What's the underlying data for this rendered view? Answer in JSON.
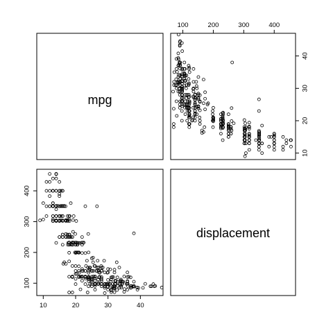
{
  "chart_data": {
    "type": "scatter",
    "variables": [
      "mpg",
      "displacement"
    ],
    "panels": {
      "mpg_label": "mpg",
      "displacement_label": "displacement"
    },
    "axes": {
      "mpg": {
        "range": [
          8,
          47
        ],
        "ticks": [
          10,
          20,
          30,
          40
        ]
      },
      "displacement": {
        "range": [
          60,
          470
        ],
        "ticks": [
          100,
          200,
          300,
          400
        ]
      }
    },
    "points": [
      [
        18,
        307
      ],
      [
        15,
        350
      ],
      [
        18,
        318
      ],
      [
        16,
        304
      ],
      [
        17,
        302
      ],
      [
        15,
        429
      ],
      [
        14,
        454
      ],
      [
        14,
        440
      ],
      [
        14,
        455
      ],
      [
        15,
        390
      ],
      [
        15,
        383
      ],
      [
        14,
        340
      ],
      [
        15,
        400
      ],
      [
        14,
        455
      ],
      [
        24,
        113
      ],
      [
        22,
        198
      ],
      [
        18,
        199
      ],
      [
        21,
        200
      ],
      [
        27,
        97
      ],
      [
        26,
        97
      ],
      [
        25,
        110
      ],
      [
        24,
        107
      ],
      [
        25,
        104
      ],
      [
        26,
        121
      ],
      [
        21,
        199
      ],
      [
        10,
        360
      ],
      [
        10,
        307
      ],
      [
        11,
        318
      ],
      [
        9,
        304
      ],
      [
        27,
        97
      ],
      [
        28,
        140
      ],
      [
        25,
        113
      ],
      [
        19,
        232
      ],
      [
        16,
        225
      ],
      [
        17,
        250
      ],
      [
        19,
        250
      ],
      [
        18,
        232
      ],
      [
        14,
        350
      ],
      [
        14,
        400
      ],
      [
        14,
        351
      ],
      [
        14,
        318
      ],
      [
        12,
        383
      ],
      [
        13,
        400
      ],
      [
        13,
        400
      ],
      [
        18,
        258
      ],
      [
        22,
        140
      ],
      [
        19,
        250
      ],
      [
        18,
        250
      ],
      [
        23,
        122
      ],
      [
        28,
        116
      ],
      [
        30,
        79
      ],
      [
        30,
        88
      ],
      [
        31,
        71
      ],
      [
        35,
        72
      ],
      [
        27,
        97
      ],
      [
        26,
        91
      ],
      [
        24,
        113
      ],
      [
        25,
        97.5
      ],
      [
        23,
        97
      ],
      [
        20,
        140
      ],
      [
        21,
        122
      ],
      [
        13,
        350
      ],
      [
        14,
        400
      ],
      [
        15,
        318
      ],
      [
        14,
        351
      ],
      [
        17,
        304
      ],
      [
        11,
        429
      ],
      [
        13,
        350
      ],
      [
        12,
        350
      ],
      [
        13,
        400
      ],
      [
        19,
        70
      ],
      [
        15,
        304
      ],
      [
        13,
        307
      ],
      [
        13,
        302
      ],
      [
        14,
        318
      ],
      [
        18,
        121
      ],
      [
        22,
        121
      ],
      [
        21,
        120
      ],
      [
        26,
        96
      ],
      [
        22,
        122
      ],
      [
        28,
        97
      ],
      [
        23,
        120
      ],
      [
        28,
        98
      ],
      [
        27,
        97
      ],
      [
        13,
        350
      ],
      [
        14,
        304
      ],
      [
        13,
        350
      ],
      [
        14,
        302
      ],
      [
        15,
        318
      ],
      [
        12,
        429
      ],
      [
        13,
        400
      ],
      [
        13,
        351
      ],
      [
        14,
        318
      ],
      [
        13,
        440
      ],
      [
        12,
        455
      ],
      [
        13,
        360
      ],
      [
        18,
        225
      ],
      [
        16,
        250
      ],
      [
        18,
        232
      ],
      [
        18,
        250
      ],
      [
        23,
        198
      ],
      [
        26,
        97
      ],
      [
        11,
        400
      ],
      [
        12,
        400
      ],
      [
        13,
        360
      ],
      [
        12,
        350
      ],
      [
        18,
        232
      ],
      [
        20,
        97
      ],
      [
        21,
        140
      ],
      [
        22,
        108
      ],
      [
        18,
        70
      ],
      [
        19,
        122
      ],
      [
        21,
        155
      ],
      [
        26,
        98
      ],
      [
        15,
        350
      ],
      [
        16,
        400
      ],
      [
        29,
        68
      ],
      [
        24,
        116
      ],
      [
        20,
        114
      ],
      [
        19,
        121
      ],
      [
        15,
        318
      ],
      [
        24,
        121
      ],
      [
        20,
        156
      ],
      [
        11,
        350
      ],
      [
        20,
        198
      ],
      [
        21,
        200
      ],
      [
        19,
        232
      ],
      [
        15,
        250
      ],
      [
        31,
        79
      ],
      [
        26,
        122
      ],
      [
        32,
        71
      ],
      [
        25,
        140
      ],
      [
        16,
        250
      ],
      [
        16,
        258
      ],
      [
        18,
        225
      ],
      [
        16,
        302
      ],
      [
        13,
        350
      ],
      [
        14,
        318
      ],
      [
        14,
        302
      ],
      [
        14,
        304
      ],
      [
        29,
        98
      ],
      [
        26,
        79
      ],
      [
        26,
        97
      ],
      [
        31,
        76
      ],
      [
        32,
        83
      ],
      [
        28,
        90
      ],
      [
        24,
        90
      ],
      [
        26,
        116
      ],
      [
        24,
        120
      ],
      [
        26,
        108
      ],
      [
        31,
        79
      ],
      [
        19,
        225
      ],
      [
        18,
        250
      ],
      [
        15,
        250
      ],
      [
        15,
        400
      ],
      [
        16,
        350
      ],
      [
        15,
        318
      ],
      [
        16,
        351
      ],
      [
        14,
        231
      ],
      [
        17,
        250
      ],
      [
        16,
        258
      ],
      [
        15,
        302
      ],
      [
        18,
        250
      ],
      [
        21,
        231
      ],
      [
        20,
        225
      ],
      [
        13,
        302
      ],
      [
        29,
        97
      ],
      [
        23,
        140
      ],
      [
        20,
        232
      ],
      [
        23,
        140
      ],
      [
        24,
        134
      ],
      [
        25,
        90
      ],
      [
        24,
        119
      ],
      [
        18,
        171
      ],
      [
        29,
        90
      ],
      [
        19,
        232
      ],
      [
        23,
        115
      ],
      [
        23,
        120
      ],
      [
        22,
        121
      ],
      [
        25,
        121
      ],
      [
        33,
        91
      ],
      [
        28,
        107
      ],
      [
        25,
        116
      ],
      [
        25,
        140
      ],
      [
        26,
        98
      ],
      [
        27,
        101
      ],
      [
        17.5,
        305
      ],
      [
        16,
        318
      ],
      [
        15.5,
        304
      ],
      [
        14.5,
        351
      ],
      [
        22,
        225
      ],
      [
        22,
        250
      ],
      [
        24,
        200
      ],
      [
        22.5,
        232
      ],
      [
        29,
        85
      ],
      [
        24.5,
        98
      ],
      [
        29,
        90
      ],
      [
        33,
        91
      ],
      [
        20,
        225
      ],
      [
        18,
        250
      ],
      [
        18.5,
        250
      ],
      [
        17.5,
        258
      ],
      [
        29.5,
        97
      ],
      [
        32,
        85
      ],
      [
        28,
        97
      ],
      [
        26.5,
        140
      ],
      [
        20,
        130
      ],
      [
        13,
        318
      ],
      [
        19,
        120
      ],
      [
        19,
        156
      ],
      [
        16.5,
        168
      ],
      [
        16.5,
        350
      ],
      [
        13,
        350
      ],
      [
        13,
        302
      ],
      [
        13,
        318
      ],
      [
        31.5,
        98
      ],
      [
        30,
        111
      ],
      [
        36,
        79
      ],
      [
        25.5,
        122
      ],
      [
        33.5,
        85
      ],
      [
        17.5,
        305
      ],
      [
        17,
        260
      ],
      [
        15.5,
        318
      ],
      [
        15,
        302
      ],
      [
        17.5,
        250
      ],
      [
        20.5,
        231
      ],
      [
        19,
        225
      ],
      [
        18.5,
        250
      ],
      [
        16,
        400
      ],
      [
        15.5,
        350
      ],
      [
        15.5,
        400
      ],
      [
        16,
        318
      ],
      [
        29,
        97
      ],
      [
        24.5,
        151
      ],
      [
        26,
        97
      ],
      [
        25.5,
        140
      ],
      [
        30.5,
        98
      ],
      [
        33.5,
        98
      ],
      [
        30,
        97
      ],
      [
        30.5,
        97
      ],
      [
        22,
        146
      ],
      [
        21.5,
        121
      ],
      [
        21.5,
        80
      ],
      [
        43.1,
        90
      ],
      [
        36.1,
        98
      ],
      [
        32.8,
        78
      ],
      [
        39.4,
        85
      ],
      [
        36.1,
        91
      ],
      [
        19.9,
        260
      ],
      [
        19.4,
        318
      ],
      [
        20.2,
        302
      ],
      [
        19.2,
        231
      ],
      [
        20.5,
        200
      ],
      [
        20.2,
        200
      ],
      [
        25.1,
        140
      ],
      [
        20.5,
        225
      ],
      [
        19.4,
        232
      ],
      [
        20.6,
        231
      ],
      [
        20.8,
        200
      ],
      [
        18.6,
        225
      ],
      [
        18.1,
        258
      ],
      [
        19.2,
        305
      ],
      [
        17.7,
        231
      ],
      [
        18.1,
        302
      ],
      [
        17.5,
        318
      ],
      [
        30,
        98
      ],
      [
        27.5,
        134
      ],
      [
        27.2,
        119
      ],
      [
        30.9,
        105
      ],
      [
        21.1,
        134
      ],
      [
        23.2,
        156
      ],
      [
        23.8,
        151
      ],
      [
        23.9,
        119
      ],
      [
        20.3,
        131
      ],
      [
        17,
        163
      ],
      [
        21.6,
        121
      ],
      [
        16.2,
        163
      ],
      [
        31.5,
        89
      ],
      [
        29.5,
        98
      ],
      [
        21.5,
        231
      ],
      [
        19.8,
        200
      ],
      [
        22.3,
        140
      ],
      [
        20.2,
        232
      ],
      [
        20.6,
        225
      ],
      [
        17,
        305
      ],
      [
        17.6,
        302
      ],
      [
        16.5,
        351
      ],
      [
        18.2,
        318
      ],
      [
        16.9,
        350
      ],
      [
        15.5,
        351
      ],
      [
        19.2,
        267
      ],
      [
        18.5,
        360
      ],
      [
        31.9,
        89
      ],
      [
        34.1,
        86
      ],
      [
        35.7,
        98
      ],
      [
        27.4,
        121
      ],
      [
        25.4,
        183
      ],
      [
        23,
        350
      ],
      [
        27.2,
        141
      ],
      [
        23.9,
        260
      ],
      [
        34.2,
        105
      ],
      [
        34.5,
        105
      ],
      [
        31.8,
        85
      ],
      [
        37.3,
        91
      ],
      [
        28.4,
        151
      ],
      [
        28.8,
        173
      ],
      [
        26.8,
        173
      ],
      [
        33.5,
        151
      ],
      [
        41.5,
        98
      ],
      [
        38.1,
        89
      ],
      [
        32.1,
        98
      ],
      [
        37.2,
        86
      ],
      [
        28,
        151
      ],
      [
        26.4,
        140
      ],
      [
        24.3,
        151
      ],
      [
        19.1,
        225
      ],
      [
        34.3,
        97
      ],
      [
        29.8,
        134
      ],
      [
        31.3,
        120
      ],
      [
        37,
        119
      ],
      [
        32.2,
        108
      ],
      [
        46.6,
        86
      ],
      [
        27.9,
        156
      ],
      [
        40.8,
        85
      ],
      [
        44.3,
        90
      ],
      [
        43.4,
        90
      ],
      [
        36.4,
        121
      ],
      [
        30,
        146
      ],
      [
        44.6,
        91
      ],
      [
        33.8,
        97
      ],
      [
        29.8,
        89
      ],
      [
        32.7,
        168
      ],
      [
        23.7,
        70
      ],
      [
        35,
        122
      ],
      [
        32.4,
        107
      ],
      [
        27.2,
        135
      ],
      [
        26.6,
        151
      ],
      [
        25.8,
        156
      ],
      [
        23.5,
        173
      ],
      [
        30,
        135
      ],
      [
        39.1,
        79
      ],
      [
        39,
        86
      ],
      [
        35.1,
        81
      ],
      [
        32.3,
        97
      ],
      [
        37,
        85
      ],
      [
        37.7,
        89
      ],
      [
        34.1,
        91
      ],
      [
        34.7,
        105
      ],
      [
        34.4,
        98
      ],
      [
        29.9,
        98
      ],
      [
        33,
        105
      ],
      [
        33.7,
        107
      ],
      [
        32.4,
        108
      ],
      [
        32.9,
        119
      ],
      [
        31.6,
        120
      ],
      [
        28.1,
        141
      ],
      [
        30.7,
        145
      ],
      [
        25.4,
        168
      ],
      [
        24.2,
        146
      ],
      [
        22.4,
        231
      ],
      [
        26.6,
        350
      ],
      [
        20.2,
        200
      ],
      [
        17.6,
        225
      ],
      [
        28,
        112
      ],
      [
        27,
        112
      ],
      [
        34,
        112
      ],
      [
        31,
        112
      ],
      [
        29,
        135
      ],
      [
        27,
        151
      ],
      [
        24,
        140
      ],
      [
        36,
        105
      ],
      [
        37,
        91
      ],
      [
        31,
        91
      ],
      [
        38,
        105
      ],
      [
        36,
        98
      ],
      [
        36,
        120
      ],
      [
        36,
        107
      ],
      [
        34,
        108
      ],
      [
        38,
        91
      ],
      [
        32,
        91
      ],
      [
        38,
        91
      ],
      [
        25,
        181
      ],
      [
        38,
        262
      ],
      [
        26,
        156
      ],
      [
        22,
        232
      ],
      [
        32,
        144
      ],
      [
        36,
        135
      ],
      [
        27,
        151
      ],
      [
        27,
        140
      ],
      [
        44,
        97
      ],
      [
        32,
        135
      ],
      [
        28,
        120
      ],
      [
        31,
        119
      ]
    ]
  }
}
